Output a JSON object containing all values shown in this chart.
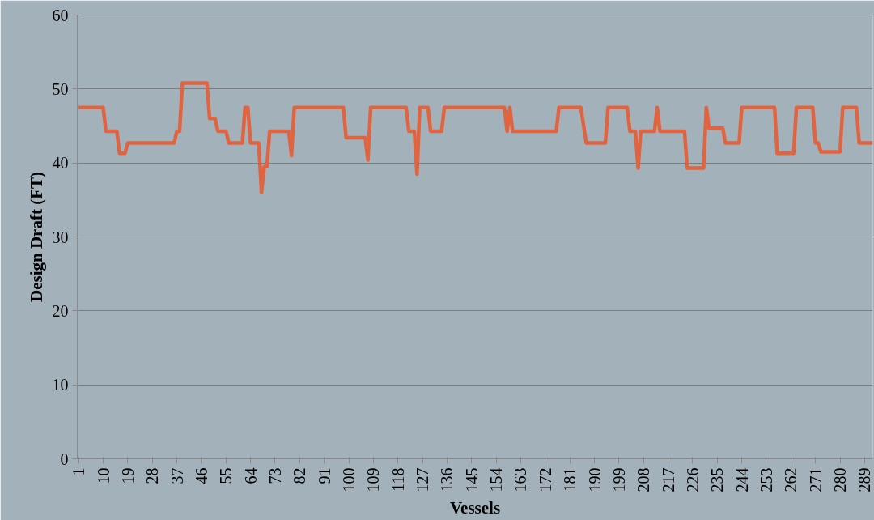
{
  "chart_data": {
    "type": "line",
    "xlabel": "Vessels",
    "ylabel": "Design Draft (FT)",
    "x": [
      1,
      10,
      11,
      15,
      16,
      18,
      19,
      36,
      37,
      38,
      39,
      48,
      49,
      51,
      52,
      55,
      56,
      61,
      62,
      63,
      64,
      67,
      68,
      69,
      70,
      71,
      78,
      79,
      80,
      98,
      99,
      106,
      107,
      108,
      121,
      122,
      124,
      125,
      126,
      129,
      130,
      134,
      135,
      157,
      158,
      159,
      160,
      176,
      177,
      185,
      187,
      194,
      195,
      202,
      203,
      205,
      206,
      207,
      212,
      213,
      214,
      223,
      224,
      230,
      231,
      232,
      237,
      238,
      243,
      244,
      256,
      257,
      263,
      264,
      270,
      271,
      272,
      273,
      280,
      281,
      286,
      287,
      292
    ],
    "series": [
      {
        "color": "#e06440",
        "values": [
          47.5,
          47.5,
          44.3,
          44.3,
          41.3,
          41.3,
          42.7,
          42.7,
          44.3,
          44.3,
          50.8,
          50.8,
          46,
          46,
          44.3,
          44.3,
          42.7,
          42.7,
          47.5,
          47.5,
          42.7,
          42.7,
          36,
          39.5,
          39.5,
          44.3,
          44.3,
          41,
          47.5,
          47.5,
          43.4,
          43.4,
          40.4,
          47.5,
          47.5,
          44.3,
          44.3,
          38.5,
          47.5,
          47.5,
          44.3,
          44.3,
          47.5,
          47.5,
          44.3,
          47.5,
          44.3,
          44.3,
          47.5,
          47.5,
          42.7,
          42.7,
          47.5,
          47.5,
          44.3,
          44.3,
          39.3,
          44.3,
          44.3,
          47.5,
          44.3,
          44.3,
          39.3,
          39.3,
          47.5,
          44.7,
          44.7,
          42.7,
          42.7,
          47.5,
          47.5,
          41.3,
          41.3,
          47.5,
          47.5,
          42.7,
          42.7,
          41.5,
          41.5,
          47.5,
          47.5,
          42.7,
          42.7
        ]
      }
    ],
    "xlim": [
      0.5,
      292
    ],
    "xticks": [
      1,
      10,
      19,
      28,
      37,
      46,
      55,
      64,
      73,
      82,
      91,
      100,
      109,
      118,
      127,
      136,
      145,
      154,
      163,
      172,
      181,
      190,
      199,
      208,
      217,
      226,
      235,
      244,
      253,
      262,
      271,
      280,
      289
    ],
    "ylim": [
      0,
      60
    ],
    "yticks": [
      0,
      10,
      20,
      30,
      40,
      50,
      60
    ],
    "grid": "y",
    "line_style": "solid",
    "marker": "none"
  }
}
